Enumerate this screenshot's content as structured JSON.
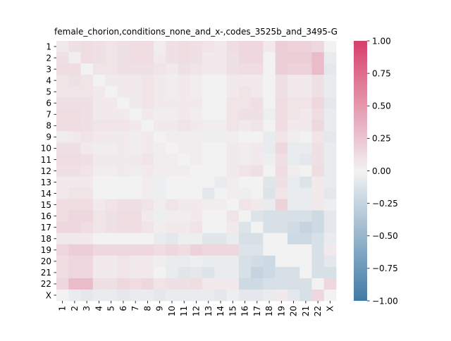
{
  "chart_data": {
    "type": "heatmap",
    "title": "female_chorion,conditions_none_and_x-,codes_3525b_and_3495-G",
    "xlabel": "",
    "ylabel": "",
    "categories": [
      "1",
      "2",
      "3",
      "4",
      "5",
      "6",
      "7",
      "8",
      "9",
      "10",
      "11",
      "12",
      "13",
      "14",
      "15",
      "16",
      "17",
      "18",
      "19",
      "20",
      "21",
      "22",
      "X"
    ],
    "colorbar": {
      "vmin": -1.0,
      "vmax": 1.0,
      "ticks": [
        -1.0,
        -0.75,
        -0.5,
        -0.25,
        0.0,
        0.25,
        0.5,
        0.75,
        1.0
      ],
      "tick_labels": [
        "−1.00",
        "−0.75",
        "−0.50",
        "−0.25",
        "0.00",
        "0.25",
        "0.50",
        "0.75",
        "1.00"
      ],
      "colors": {
        "negative": "#3f7aa6",
        "center": "#f2f2f2",
        "positive": "#d63f6b"
      }
    },
    "values": [
      [
        0.05,
        0.1,
        0.12,
        0.1,
        0.08,
        0.1,
        0.12,
        0.12,
        0.03,
        0.1,
        0.12,
        0.1,
        0.08,
        0.05,
        0.12,
        0.15,
        0.15,
        0.05,
        0.2,
        0.18,
        0.18,
        0.15,
        0.0
      ],
      [
        0.1,
        0.02,
        0.12,
        0.1,
        0.08,
        0.1,
        0.12,
        0.12,
        0.05,
        0.1,
        0.12,
        0.1,
        0.05,
        0.05,
        0.1,
        0.15,
        0.15,
        0.0,
        0.2,
        0.2,
        0.2,
        0.3,
        -0.05
      ],
      [
        0.12,
        0.12,
        0.0,
        0.08,
        0.08,
        0.1,
        0.1,
        0.1,
        0.08,
        0.05,
        0.1,
        0.08,
        0.05,
        0.05,
        0.1,
        0.12,
        0.12,
        0.0,
        0.2,
        0.18,
        0.18,
        0.3,
        -0.08
      ],
      [
        0.08,
        0.1,
        0.08,
        0.0,
        0.05,
        0.05,
        0.05,
        0.08,
        0.05,
        0.03,
        0.05,
        0.03,
        0.0,
        0.0,
        0.05,
        0.05,
        0.05,
        0.0,
        0.1,
        0.05,
        0.05,
        0.1,
        -0.05
      ],
      [
        0.08,
        0.08,
        0.08,
        0.05,
        0.0,
        0.05,
        0.05,
        0.08,
        0.05,
        0.03,
        0.05,
        0.03,
        0.0,
        0.0,
        0.05,
        0.08,
        0.05,
        0.0,
        0.1,
        0.05,
        0.05,
        0.1,
        -0.05
      ],
      [
        0.1,
        0.1,
        0.1,
        0.05,
        0.05,
        0.0,
        0.05,
        0.08,
        0.05,
        0.05,
        0.05,
        0.05,
        0.0,
        0.0,
        0.08,
        0.08,
        0.1,
        0.0,
        0.12,
        0.08,
        0.08,
        0.15,
        -0.08
      ],
      [
        0.12,
        0.12,
        0.1,
        0.05,
        0.05,
        0.05,
        0.0,
        0.05,
        0.03,
        0.03,
        0.05,
        0.03,
        0.0,
        0.0,
        0.08,
        0.1,
        0.1,
        -0.03,
        0.12,
        0.08,
        0.05,
        0.12,
        -0.05
      ],
      [
        0.12,
        0.12,
        0.1,
        0.08,
        0.08,
        0.08,
        0.05,
        0.0,
        0.05,
        0.05,
        0.08,
        0.05,
        0.03,
        0.03,
        0.08,
        0.05,
        0.08,
        0.0,
        0.12,
        0.05,
        0.05,
        0.15,
        -0.05
      ],
      [
        0.03,
        0.05,
        0.08,
        0.05,
        0.05,
        0.05,
        0.03,
        0.05,
        0.0,
        0.03,
        0.03,
        0.03,
        -0.03,
        -0.03,
        0.03,
        0.0,
        0.0,
        -0.05,
        0.08,
        0.03,
        0.0,
        0.08,
        -0.08
      ],
      [
        0.1,
        0.1,
        0.05,
        0.03,
        0.03,
        0.05,
        0.03,
        0.05,
        0.03,
        0.0,
        0.03,
        0.03,
        0.0,
        0.0,
        0.05,
        0.03,
        0.05,
        -0.05,
        0.15,
        -0.05,
        -0.05,
        0.1,
        -0.05
      ],
      [
        0.12,
        0.12,
        0.1,
        0.05,
        0.05,
        0.05,
        0.05,
        0.08,
        0.03,
        0.03,
        0.0,
        0.03,
        0.0,
        0.0,
        0.05,
        0.03,
        0.05,
        -0.03,
        0.1,
        -0.05,
        -0.08,
        0.1,
        -0.05
      ],
      [
        0.1,
        0.1,
        0.08,
        0.03,
        0.03,
        0.05,
        0.03,
        0.05,
        0.03,
        0.03,
        0.03,
        0.0,
        0.0,
        0.0,
        0.05,
        0.08,
        0.1,
        0.0,
        0.12,
        0.03,
        0.0,
        0.12,
        -0.05
      ],
      [
        0.05,
        0.05,
        0.05,
        0.0,
        0.0,
        0.0,
        0.0,
        0.03,
        -0.03,
        0.0,
        0.0,
        0.0,
        0.0,
        -0.05,
        0.03,
        0.0,
        0.0,
        -0.1,
        0.1,
        -0.05,
        -0.12,
        0.05,
        -0.05
      ],
      [
        0.05,
        0.08,
        0.08,
        0.0,
        0.0,
        0.0,
        0.0,
        0.03,
        -0.03,
        0.0,
        0.0,
        0.0,
        -0.08,
        0.0,
        0.03,
        -0.03,
        0.0,
        -0.12,
        0.08,
        -0.05,
        -0.05,
        0.05,
        -0.08
      ],
      [
        0.12,
        0.12,
        0.12,
        0.05,
        0.08,
        0.1,
        0.1,
        0.08,
        0.03,
        0.08,
        0.05,
        0.05,
        0.03,
        0.03,
        0.0,
        0.08,
        0.05,
        -0.05,
        0.18,
        -0.05,
        -0.05,
        0.05,
        -0.03
      ],
      [
        0.12,
        0.15,
        0.15,
        0.08,
        0.1,
        0.12,
        0.12,
        0.05,
        -0.03,
        0.03,
        0.03,
        0.05,
        0.0,
        0.0,
        0.08,
        0.0,
        -0.12,
        -0.15,
        -0.15,
        -0.15,
        -0.15,
        -0.2,
        -0.08
      ],
      [
        0.15,
        0.15,
        0.12,
        0.08,
        0.1,
        0.12,
        0.12,
        0.08,
        0.03,
        0.05,
        0.05,
        0.08,
        0.0,
        0.0,
        0.05,
        -0.12,
        0.0,
        -0.15,
        -0.15,
        -0.18,
        -0.25,
        -0.2,
        -0.08
      ],
      [
        0.05,
        0.05,
        0.05,
        0.0,
        0.0,
        0.0,
        0.0,
        0.0,
        -0.05,
        -0.08,
        -0.03,
        -0.03,
        -0.1,
        -0.1,
        -0.05,
        -0.15,
        -0.15,
        0.0,
        0.0,
        -0.2,
        -0.2,
        -0.15,
        -0.05
      ],
      [
        0.15,
        0.2,
        0.2,
        0.15,
        0.15,
        0.15,
        0.15,
        0.15,
        0.12,
        0.15,
        0.12,
        0.18,
        0.15,
        0.15,
        0.15,
        -0.12,
        -0.12,
        0.0,
        0.0,
        0.0,
        0.0,
        -0.15,
        0.05
      ],
      [
        0.12,
        0.15,
        0.15,
        0.05,
        0.05,
        0.08,
        0.05,
        0.05,
        0.03,
        -0.05,
        -0.05,
        -0.03,
        -0.05,
        -0.05,
        -0.05,
        -0.15,
        -0.18,
        -0.2,
        0.0,
        0.0,
        0.0,
        -0.15,
        -0.08
      ],
      [
        0.12,
        0.15,
        0.15,
        0.05,
        0.05,
        0.08,
        0.05,
        0.05,
        0.0,
        -0.05,
        -0.1,
        -0.08,
        -0.12,
        -0.05,
        -0.05,
        -0.15,
        -0.25,
        -0.2,
        -0.15,
        -0.15,
        0.0,
        -0.15,
        -0.15
      ],
      [
        0.15,
        0.3,
        0.3,
        0.1,
        0.1,
        0.15,
        0.12,
        0.15,
        0.08,
        0.1,
        0.1,
        0.12,
        0.05,
        0.05,
        0.05,
        -0.2,
        -0.2,
        -0.15,
        -0.15,
        -0.15,
        -0.15,
        0.0,
        0.15
      ],
      [
        0.0,
        -0.05,
        -0.08,
        -0.05,
        -0.05,
        -0.08,
        -0.05,
        -0.05,
        -0.08,
        -0.05,
        -0.05,
        -0.05,
        -0.05,
        -0.08,
        -0.03,
        -0.08,
        -0.08,
        -0.05,
        0.05,
        -0.08,
        -0.15,
        0.15,
        0.0
      ]
    ]
  }
}
